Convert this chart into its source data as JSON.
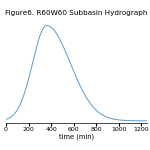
{
  "title": "Figure6. R60W60 Subbasin Hydrograph",
  "xlabel": "time (min)",
  "xlim": [
    0,
    1250
  ],
  "ylim_min": -0.02,
  "ylim_max": 0.95,
  "x_ticks": [
    0,
    200,
    400,
    600,
    800,
    1000,
    1200
  ],
  "peak_time": 360,
  "peak_value": 0.88,
  "rise_std": 125,
  "fall_std": 210,
  "line_color": "#5b9bd5",
  "background_color": "#ffffff",
  "title_fontsize": 5.2,
  "label_fontsize": 4.8,
  "tick_fontsize": 4.5
}
